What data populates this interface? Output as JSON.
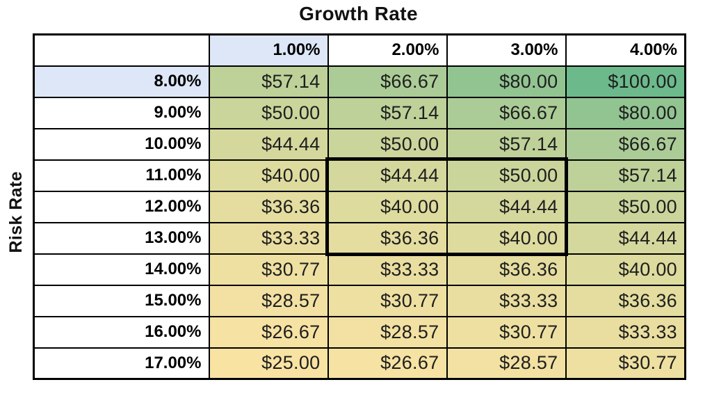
{
  "axes": {
    "column_title": "Growth Rate",
    "row_title": "Risk Rate"
  },
  "table": {
    "corner_label": "",
    "col_headers": [
      "1.00%",
      "2.00%",
      "3.00%",
      "4.00%"
    ],
    "rows": [
      {
        "header": "8.00%",
        "values": [
          "$57.14",
          "$66.67",
          "$80.00",
          "$100.00"
        ]
      },
      {
        "header": "9.00%",
        "values": [
          "$50.00",
          "$57.14",
          "$66.67",
          "$80.00"
        ]
      },
      {
        "header": "10.00%",
        "values": [
          "$44.44",
          "$50.00",
          "$57.14",
          "$66.67"
        ]
      },
      {
        "header": "11.00%",
        "values": [
          "$40.00",
          "$44.44",
          "$50.00",
          "$57.14"
        ]
      },
      {
        "header": "12.00%",
        "values": [
          "$36.36",
          "$40.00",
          "$44.44",
          "$50.00"
        ]
      },
      {
        "header": "13.00%",
        "values": [
          "$33.33",
          "$36.36",
          "$40.00",
          "$44.44"
        ]
      },
      {
        "header": "14.00%",
        "values": [
          "$30.77",
          "$33.33",
          "$36.36",
          "$40.00"
        ]
      },
      {
        "header": "15.00%",
        "values": [
          "$28.57",
          "$30.77",
          "$33.33",
          "$36.36"
        ]
      },
      {
        "header": "16.00%",
        "values": [
          "$26.67",
          "$28.57",
          "$30.77",
          "$33.33"
        ]
      },
      {
        "header": "17.00%",
        "values": [
          "$25.00",
          "$26.67",
          "$28.57",
          "$30.77"
        ]
      }
    ],
    "highlight": {
      "col_header": "1.00%",
      "row_header": "8.00%"
    },
    "selection": {
      "row_headers": [
        "11.00%",
        "12.00%",
        "13.00%"
      ],
      "col_headers": [
        "2.00%",
        "3.00%"
      ]
    }
  },
  "colors": {
    "header_highlight": "#dde7f8",
    "grid_border": "#000000",
    "value_text": "#1e1e1e",
    "value_fills": {
      "$25.00": "#f9e3a3",
      "$26.67": "#f6e2a2",
      "$28.57": "#f2e1a2",
      "$30.77": "#eee0a1",
      "$33.33": "#e9dea0",
      "$36.36": "#e4dd9f",
      "$40.00": "#dddb9e",
      "$44.44": "#d4d89d",
      "$50.00": "#cad59b",
      "$57.14": "#bdd199",
      "$66.67": "#abcc96",
      "$80.00": "#92c492",
      "$100.00": "#6cb98c"
    }
  },
  "chart_data": {
    "type": "heatmap",
    "title": "Growth Rate",
    "xlabel": "Growth Rate",
    "ylabel": "Risk Rate",
    "x_categories": [
      "1.00%",
      "2.00%",
      "3.00%",
      "4.00%"
    ],
    "y_categories": [
      "8.00%",
      "9.00%",
      "10.00%",
      "11.00%",
      "12.00%",
      "13.00%",
      "14.00%",
      "15.00%",
      "16.00%",
      "17.00%"
    ],
    "values": [
      [
        57.14,
        66.67,
        80.0,
        100.0
      ],
      [
        50.0,
        57.14,
        66.67,
        80.0
      ],
      [
        44.44,
        50.0,
        57.14,
        66.67
      ],
      [
        40.0,
        44.44,
        50.0,
        57.14
      ],
      [
        36.36,
        40.0,
        44.44,
        50.0
      ],
      [
        33.33,
        36.36,
        40.0,
        44.44
      ],
      [
        30.77,
        33.33,
        36.36,
        40.0
      ],
      [
        28.57,
        30.77,
        33.33,
        36.36
      ],
      [
        26.67,
        28.57,
        30.77,
        33.33
      ],
      [
        25.0,
        26.67,
        28.57,
        30.77
      ]
    ],
    "value_format": "$#.00",
    "colormap": {
      "min_value": 25,
      "max_value": 100,
      "min_color": "#f9e3a3",
      "max_color": "#6cb98c"
    },
    "highlighted_region": {
      "rows": [
        "11.00%",
        "12.00%",
        "13.00%"
      ],
      "cols": [
        "2.00%",
        "3.00%"
      ]
    },
    "grid": true,
    "legend": false
  }
}
